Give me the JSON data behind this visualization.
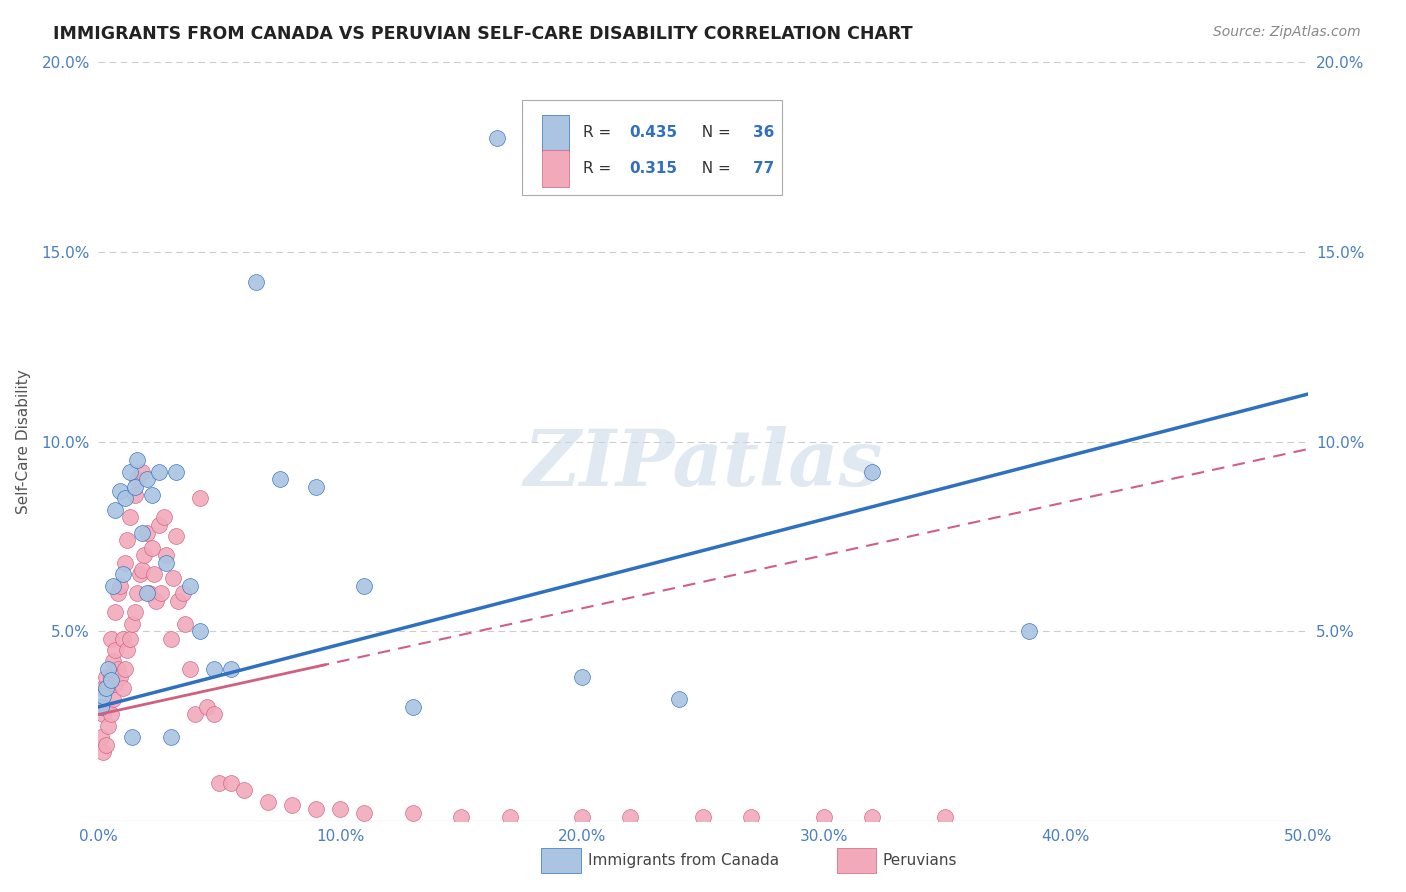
{
  "title": "IMMIGRANTS FROM CANADA VS PERUVIAN SELF-CARE DISABILITY CORRELATION CHART",
  "source": "Source: ZipAtlas.com",
  "ylabel": "Self-Care Disability",
  "xlim": [
    0.0,
    0.5
  ],
  "ylim": [
    0.0,
    0.2
  ],
  "xticks": [
    0.0,
    0.1,
    0.2,
    0.3,
    0.4,
    0.5
  ],
  "xtick_labels": [
    "0.0%",
    "10.0%",
    "20.0%",
    "30.0%",
    "40.0%",
    "50.0%"
  ],
  "yticks": [
    0.0,
    0.05,
    0.1,
    0.15,
    0.2
  ],
  "ytick_labels": [
    "",
    "5.0%",
    "10.0%",
    "15.0%",
    "20.0%"
  ],
  "canada_color": "#aac4e2",
  "peru_color": "#f2aabb",
  "canada_line_color": "#3070c0",
  "peru_line_color": "#d06080",
  "R_canada": 0.435,
  "N_canada": 36,
  "R_peru": 0.315,
  "N_peru": 77,
  "canada_intercept": 0.03,
  "canada_slope": 0.165,
  "peru_intercept": 0.028,
  "peru_slope": 0.14,
  "canada_x": [
    0.001,
    0.002,
    0.003,
    0.004,
    0.005,
    0.006,
    0.007,
    0.009,
    0.01,
    0.011,
    0.013,
    0.015,
    0.016,
    0.018,
    0.02,
    0.022,
    0.025,
    0.028,
    0.032,
    0.038,
    0.042,
    0.048,
    0.055,
    0.065,
    0.075,
    0.09,
    0.11,
    0.13,
    0.165,
    0.2,
    0.24,
    0.32,
    0.385,
    0.014,
    0.02,
    0.03
  ],
  "canada_y": [
    0.03,
    0.033,
    0.035,
    0.04,
    0.037,
    0.062,
    0.082,
    0.087,
    0.065,
    0.085,
    0.092,
    0.088,
    0.095,
    0.076,
    0.09,
    0.086,
    0.092,
    0.068,
    0.092,
    0.062,
    0.05,
    0.04,
    0.04,
    0.142,
    0.09,
    0.088,
    0.062,
    0.03,
    0.18,
    0.038,
    0.032,
    0.092,
    0.05,
    0.022,
    0.06,
    0.022
  ],
  "peru_x": [
    0.001,
    0.001,
    0.002,
    0.002,
    0.002,
    0.003,
    0.003,
    0.003,
    0.004,
    0.004,
    0.005,
    0.005,
    0.005,
    0.006,
    0.006,
    0.007,
    0.007,
    0.007,
    0.008,
    0.008,
    0.009,
    0.009,
    0.01,
    0.01,
    0.011,
    0.011,
    0.012,
    0.012,
    0.013,
    0.013,
    0.014,
    0.015,
    0.015,
    0.016,
    0.016,
    0.017,
    0.018,
    0.018,
    0.019,
    0.02,
    0.021,
    0.022,
    0.023,
    0.024,
    0.025,
    0.026,
    0.027,
    0.028,
    0.03,
    0.031,
    0.032,
    0.033,
    0.035,
    0.036,
    0.038,
    0.04,
    0.042,
    0.045,
    0.048,
    0.05,
    0.055,
    0.06,
    0.07,
    0.08,
    0.09,
    0.1,
    0.11,
    0.13,
    0.15,
    0.17,
    0.2,
    0.22,
    0.25,
    0.27,
    0.3,
    0.32,
    0.35
  ],
  "peru_y": [
    0.022,
    0.03,
    0.018,
    0.028,
    0.035,
    0.02,
    0.03,
    0.038,
    0.025,
    0.035,
    0.028,
    0.038,
    0.048,
    0.032,
    0.042,
    0.036,
    0.045,
    0.055,
    0.04,
    0.06,
    0.038,
    0.062,
    0.035,
    0.048,
    0.04,
    0.068,
    0.045,
    0.074,
    0.048,
    0.08,
    0.052,
    0.055,
    0.086,
    0.06,
    0.09,
    0.065,
    0.066,
    0.092,
    0.07,
    0.076,
    0.06,
    0.072,
    0.065,
    0.058,
    0.078,
    0.06,
    0.08,
    0.07,
    0.048,
    0.064,
    0.075,
    0.058,
    0.06,
    0.052,
    0.04,
    0.028,
    0.085,
    0.03,
    0.028,
    0.01,
    0.01,
    0.008,
    0.005,
    0.004,
    0.003,
    0.003,
    0.002,
    0.002,
    0.001,
    0.001,
    0.001,
    0.001,
    0.001,
    0.001,
    0.001,
    0.001,
    0.001
  ],
  "watermark_text": "ZIPatlas",
  "background_color": "#ffffff",
  "grid_color": "#cccccc",
  "tick_color": "#4a7fc1"
}
